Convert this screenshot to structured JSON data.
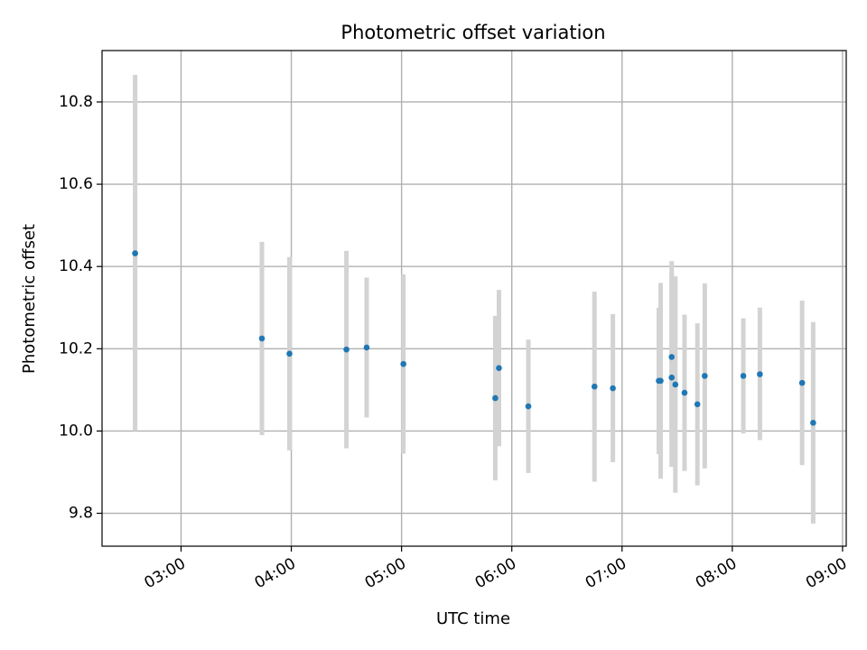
{
  "chart_data": {
    "type": "scatter",
    "title": "Photometric offset variation",
    "xlabel": "UTC time",
    "ylabel": "Photometric offset",
    "grid": true,
    "xlim": [
      "02:17",
      "09:02"
    ],
    "ylim": [
      9.72,
      10.925
    ],
    "x_ticks": [
      "03:00",
      "04:00",
      "05:00",
      "06:00",
      "07:00",
      "08:00",
      "09:00"
    ],
    "y_ticks": [
      9.8,
      10.0,
      10.2,
      10.4,
      10.6,
      10.8
    ],
    "y_tick_labels": [
      "9.8",
      "10.0",
      "10.2",
      "10.4",
      "10.6",
      "10.8"
    ],
    "colors": {
      "point": "#1f77b4",
      "errorbar": "#d3d3d3",
      "grid": "#b0b0b0"
    },
    "points": [
      {
        "x": "02:35",
        "y": 10.432,
        "lo": 10.0,
        "hi": 10.866
      },
      {
        "x": "03:44",
        "y": 10.225,
        "lo": 9.99,
        "hi": 10.46
      },
      {
        "x": "03:59",
        "y": 10.188,
        "lo": 9.953,
        "hi": 10.423
      },
      {
        "x": "04:30",
        "y": 10.198,
        "lo": 9.958,
        "hi": 10.438
      },
      {
        "x": "04:41",
        "y": 10.203,
        "lo": 10.033,
        "hi": 10.373
      },
      {
        "x": "05:01",
        "y": 10.163,
        "lo": 9.945,
        "hi": 10.381
      },
      {
        "x": "05:51",
        "y": 10.08,
        "lo": 9.88,
        "hi": 10.28
      },
      {
        "x": "05:53",
        "y": 10.153,
        "lo": 9.963,
        "hi": 10.343
      },
      {
        "x": "06:09",
        "y": 10.06,
        "lo": 9.898,
        "hi": 10.222
      },
      {
        "x": "06:45",
        "y": 10.108,
        "lo": 9.877,
        "hi": 10.339
      },
      {
        "x": "06:55",
        "y": 10.104,
        "lo": 9.924,
        "hi": 10.284
      },
      {
        "x": "07:20",
        "y": 10.122,
        "lo": 9.944,
        "hi": 10.3
      },
      {
        "x": "07:21",
        "y": 10.122,
        "lo": 9.884,
        "hi": 10.36
      },
      {
        "x": "07:27",
        "y": 10.13,
        "lo": 9.913,
        "hi": 10.413
      },
      {
        "x": "07:27",
        "y": 10.18,
        "lo": 9.98,
        "hi": 10.38
      },
      {
        "x": "07:29",
        "y": 10.113,
        "lo": 9.85,
        "hi": 10.376
      },
      {
        "x": "07:34",
        "y": 10.093,
        "lo": 9.903,
        "hi": 10.283
      },
      {
        "x": "07:41",
        "y": 10.065,
        "lo": 9.868,
        "hi": 10.262
      },
      {
        "x": "07:45",
        "y": 10.134,
        "lo": 9.909,
        "hi": 10.359
      },
      {
        "x": "08:06",
        "y": 10.134,
        "lo": 9.994,
        "hi": 10.274
      },
      {
        "x": "08:15",
        "y": 10.138,
        "lo": 9.978,
        "hi": 10.3
      },
      {
        "x": "08:38",
        "y": 10.117,
        "lo": 9.917,
        "hi": 10.317
      },
      {
        "x": "08:44",
        "y": 10.02,
        "lo": 9.775,
        "hi": 10.265
      }
    ]
  }
}
